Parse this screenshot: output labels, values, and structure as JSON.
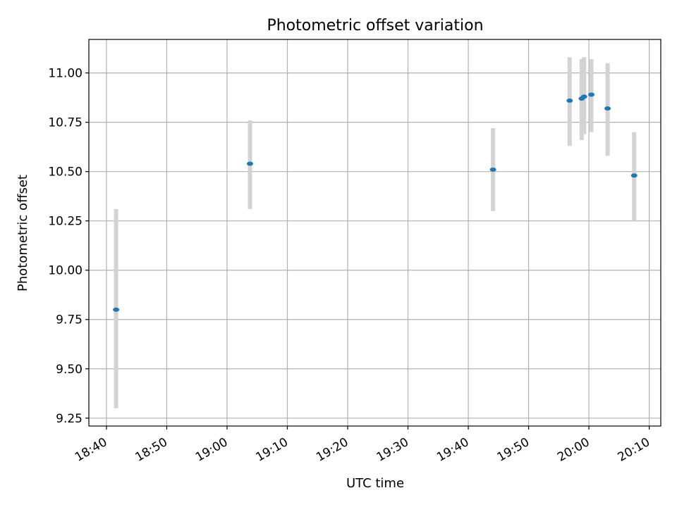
{
  "chart_data": {
    "type": "scatter",
    "title": "Photometric offset variation",
    "xlabel": "UTC time",
    "ylabel": "Photometric offset",
    "grid": true,
    "x_ticks": [
      "18:40",
      "18:50",
      "19:00",
      "19:10",
      "19:20",
      "19:30",
      "19:40",
      "19:50",
      "20:00",
      "20:10"
    ],
    "y_ticks": [
      "9.25",
      "9.50",
      "9.75",
      "10.00",
      "10.25",
      "10.50",
      "10.75",
      "11.00"
    ],
    "xlim": [
      "18:37:05",
      "20:11:55"
    ],
    "ylim": [
      9.21,
      11.17
    ],
    "points": [
      {
        "x": "18:41:36",
        "y": 9.8,
        "err_low": 9.3,
        "err_high": 10.31
      },
      {
        "x": "19:03:48",
        "y": 10.54,
        "err_low": 10.31,
        "err_high": 10.76
      },
      {
        "x": "19:44:06",
        "y": 10.51,
        "err_low": 10.3,
        "err_high": 10.72
      },
      {
        "x": "19:56:48",
        "y": 10.86,
        "err_low": 10.63,
        "err_high": 11.08
      },
      {
        "x": "19:58:48",
        "y": 10.87,
        "err_low": 10.66,
        "err_high": 11.07
      },
      {
        "x": "19:59:12",
        "y": 10.88,
        "err_low": 10.69,
        "err_high": 11.08
      },
      {
        "x": "20:00:24",
        "y": 10.89,
        "err_low": 10.7,
        "err_high": 11.07
      },
      {
        "x": "20:03:06",
        "y": 10.82,
        "err_low": 10.58,
        "err_high": 11.05
      },
      {
        "x": "20:07:30",
        "y": 10.48,
        "err_low": 10.25,
        "err_high": 10.7
      }
    ],
    "colors": {
      "marker": "#1f77b4",
      "errorbar": "#d3d3d3",
      "grid": "#b0b0b0",
      "frame": "#000000"
    }
  }
}
